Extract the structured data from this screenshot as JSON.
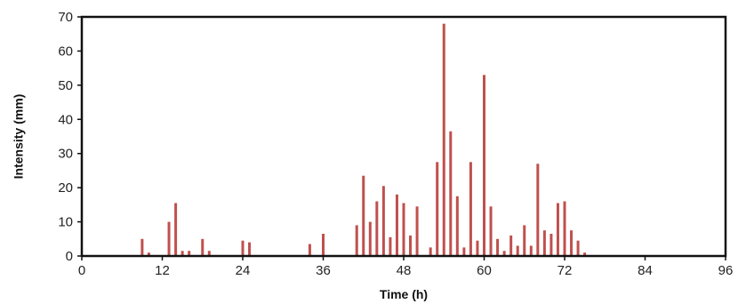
{
  "chart_data": {
    "type": "bar",
    "title": "",
    "xlabel": "Time (h)",
    "ylabel": "Intensity (mm)",
    "xlim": [
      0,
      96
    ],
    "ylim": [
      0,
      70
    ],
    "xticks": [
      0,
      12,
      24,
      36,
      48,
      60,
      72,
      84,
      96
    ],
    "yticks": [
      0,
      10,
      20,
      30,
      40,
      50,
      60,
      70
    ],
    "grid": false,
    "legend": "none",
    "bar_color": "#c0504d",
    "series": [
      {
        "x": [
          9,
          10,
          13,
          14,
          15,
          16,
          18,
          19,
          24,
          25,
          34,
          36,
          41,
          42,
          43,
          44,
          45,
          46,
          47,
          48,
          49,
          50,
          52,
          53,
          54,
          55,
          56,
          57,
          58,
          59,
          60,
          61,
          62,
          63,
          64,
          65,
          66,
          67,
          68,
          69,
          70,
          71,
          72,
          73,
          74,
          75
        ],
        "values": [
          5,
          1,
          10,
          15.5,
          1.5,
          1.5,
          5,
          1.5,
          4.5,
          4,
          3.5,
          6.5,
          9,
          23.5,
          10,
          16,
          20.5,
          5.5,
          18,
          15.5,
          6,
          14.5,
          2.5,
          27.5,
          68,
          36.5,
          17.5,
          2.5,
          27.5,
          4.5,
          53,
          14.5,
          5,
          1.5,
          6,
          3,
          9,
          3,
          27,
          7.5,
          6.5,
          15.5,
          16,
          7.5,
          4.5,
          1
        ]
      }
    ]
  }
}
